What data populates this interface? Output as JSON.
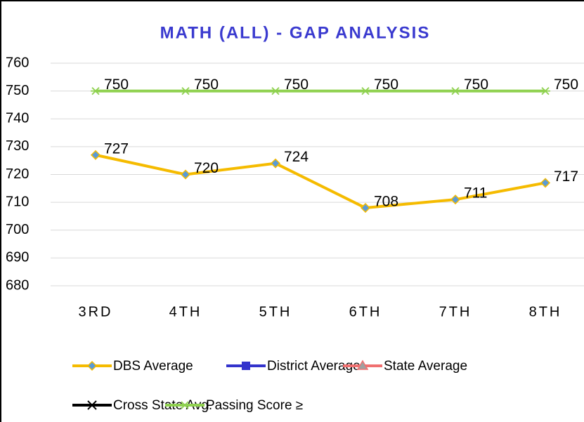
{
  "chart_data": {
    "type": "line",
    "title": "MATH (ALL) - GAP ANALYSIS",
    "categories": [
      "3RD",
      "4TH",
      "5TH",
      "6TH",
      "7TH",
      "8TH"
    ],
    "series": [
      {
        "name": "DBS Average",
        "color": "#f5bb00",
        "marker": "diamond",
        "marker_color": "#5b9bd5",
        "values": [
          727,
          720,
          724,
          708,
          711,
          717
        ]
      },
      {
        "name": "District Average",
        "color": "#3333cc",
        "marker": "square",
        "marker_color": "#3333cc",
        "values": [
          null,
          null,
          null,
          null,
          null,
          null
        ]
      },
      {
        "name": "State Average",
        "color": "#f07070",
        "marker": "triangle",
        "marker_color": "#a0a0a0",
        "values": [
          null,
          null,
          null,
          null,
          null,
          null
        ]
      },
      {
        "name": "Cross State Avg.",
        "color": "#000000",
        "marker": "x",
        "marker_color": "#000000",
        "values": [
          null,
          null,
          null,
          null,
          null,
          null
        ]
      },
      {
        "name": "Passing Score ≥",
        "color": "#8fd14f",
        "marker": "star",
        "marker_color": "#8fd14f",
        "values": [
          750,
          750,
          750,
          750,
          750,
          750
        ]
      }
    ],
    "ylim": [
      680,
      760
    ],
    "yticks": [
      680,
      690,
      700,
      710,
      720,
      730,
      740,
      750,
      760
    ],
    "grid": true,
    "data_labels": true,
    "legend": "bottom"
  }
}
